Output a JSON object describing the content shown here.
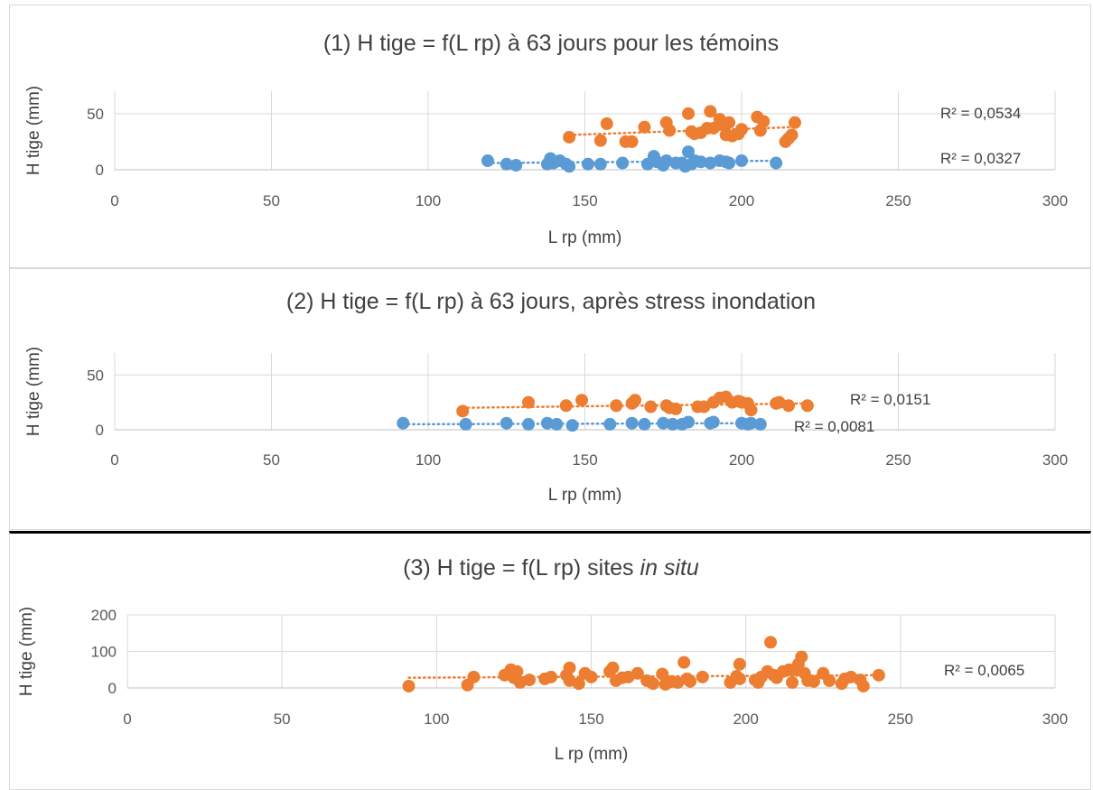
{
  "colors": {
    "blue": "#5b9bd5",
    "orange": "#ed7d31",
    "grid": "#d9d9d9",
    "text": "#404040"
  },
  "chart_data": [
    {
      "type": "scatter",
      "title": "(1) H tige = f(L rp) à 63 jours pour les témoins",
      "xlabel": "L rp (mm)",
      "ylabel": "H tige (mm)",
      "xlim": [
        0,
        300
      ],
      "ylim": [
        0,
        70
      ],
      "xticks": [
        "0",
        "50",
        "100",
        "150",
        "200",
        "250",
        "300"
      ],
      "yticks": [
        "0",
        "50"
      ],
      "grid": true,
      "series": [
        {
          "color": "#5b9bd5",
          "r2": "R² = 0,0327",
          "trend": [
            [
              119,
              6
            ],
            [
              211,
              8
            ]
          ],
          "points": [
            [
              119,
              8
            ],
            [
              125,
              5
            ],
            [
              128,
              4
            ],
            [
              138,
              5
            ],
            [
              139,
              10
            ],
            [
              140,
              6
            ],
            [
              142,
              8
            ],
            [
              144,
              5
            ],
            [
              145,
              3
            ],
            [
              151,
              5
            ],
            [
              155,
              5
            ],
            [
              162,
              6
            ],
            [
              170,
              5
            ],
            [
              172,
              12
            ],
            [
              173,
              7
            ],
            [
              175,
              4
            ],
            [
              176,
              8
            ],
            [
              179,
              6
            ],
            [
              181,
              6
            ],
            [
              182,
              3
            ],
            [
              183,
              16
            ],
            [
              184,
              5
            ],
            [
              185,
              8
            ],
            [
              187,
              7
            ],
            [
              190,
              6
            ],
            [
              193,
              8
            ],
            [
              195,
              7
            ],
            [
              196,
              6
            ],
            [
              200,
              8
            ],
            [
              211,
              6
            ]
          ]
        },
        {
          "color": "#ed7d31",
          "r2": "R² = 0,0534",
          "trend": [
            [
              145,
              31
            ],
            [
              217,
              38
            ]
          ],
          "points": [
            [
              145,
              29
            ],
            [
              155,
              26
            ],
            [
              157,
              41
            ],
            [
              163,
              25
            ],
            [
              165,
              25
            ],
            [
              169,
              38
            ],
            [
              176,
              42
            ],
            [
              177,
              35
            ],
            [
              183,
              50
            ],
            [
              184,
              34
            ],
            [
              185,
              32
            ],
            [
              187,
              33
            ],
            [
              189,
              37
            ],
            [
              190,
              52
            ],
            [
              191,
              37
            ],
            [
              193,
              45
            ],
            [
              194,
              40
            ],
            [
              195,
              31
            ],
            [
              196,
              42
            ],
            [
              197,
              30
            ],
            [
              199,
              32
            ],
            [
              200,
              36
            ],
            [
              205,
              47
            ],
            [
              206,
              35
            ],
            [
              207,
              43
            ],
            [
              214,
              25
            ],
            [
              215,
              28
            ],
            [
              216,
              31
            ],
            [
              217,
              42
            ]
          ]
        }
      ]
    },
    {
      "type": "scatter",
      "title": "(2) H tige = f(L rp) à 63 jours, après stress inondation",
      "xlabel": "L rp (mm)",
      "ylabel": "H tige (mm)",
      "xlim": [
        0,
        300
      ],
      "ylim": [
        0,
        70
      ],
      "xticks": [
        "0",
        "50",
        "100",
        "150",
        "200",
        "250",
        "300"
      ],
      "yticks": [
        "0",
        "50"
      ],
      "grid": true,
      "series": [
        {
          "color": "#5b9bd5",
          "r2": "R² = 0,0081",
          "trend": [
            [
              92,
              5
            ],
            [
              206,
              6
            ]
          ],
          "points": [
            [
              92,
              6
            ],
            [
              112,
              5
            ],
            [
              125,
              6
            ],
            [
              132,
              5
            ],
            [
              138,
              6
            ],
            [
              141,
              5
            ],
            [
              146,
              4
            ],
            [
              158,
              5
            ],
            [
              165,
              6
            ],
            [
              169,
              5
            ],
            [
              175,
              6
            ],
            [
              178,
              5
            ],
            [
              181,
              5
            ],
            [
              183,
              7
            ],
            [
              190,
              6
            ],
            [
              191,
              7
            ],
            [
              200,
              6
            ],
            [
              202,
              5
            ],
            [
              203,
              6
            ],
            [
              206,
              5
            ]
          ]
        },
        {
          "color": "#ed7d31",
          "r2": "R² = 0,0151",
          "trend": [
            [
              111,
              20
            ],
            [
              221,
              24
            ]
          ],
          "points": [
            [
              111,
              17
            ],
            [
              132,
              25
            ],
            [
              144,
              22
            ],
            [
              149,
              27
            ],
            [
              160,
              22
            ],
            [
              165,
              24
            ],
            [
              166,
              27
            ],
            [
              171,
              21
            ],
            [
              176,
              22
            ],
            [
              177,
              20
            ],
            [
              179,
              19
            ],
            [
              186,
              21
            ],
            [
              188,
              21
            ],
            [
              191,
              25
            ],
            [
              193,
              29
            ],
            [
              195,
              30
            ],
            [
              197,
              25
            ],
            [
              199,
              26
            ],
            [
              200,
              25
            ],
            [
              202,
              24
            ],
            [
              203,
              18
            ],
            [
              211,
              24
            ],
            [
              212,
              25
            ],
            [
              215,
              22
            ],
            [
              221,
              22
            ]
          ]
        }
      ]
    },
    {
      "type": "scatter",
      "title": "(3) H tige = f(L rp) sites",
      "title_italic": "in situ",
      "xlabel": "L rp (mm)",
      "ylabel": "H tige (mm)",
      "xlim": [
        0,
        300
      ],
      "ylim": [
        0,
        200
      ],
      "xticks": [
        "0",
        "50",
        "100",
        "150",
        "200",
        "250",
        "300"
      ],
      "yticks": [
        "0",
        "100",
        "200"
      ],
      "grid": true,
      "series": [
        {
          "color": "#ed7d31",
          "r2": "R² = 0,0065",
          "trend": [
            [
              91,
              28
            ],
            [
              243,
              35
            ]
          ],
          "points": [
            [
              91,
              5
            ],
            [
              110,
              8
            ],
            [
              112,
              30
            ],
            [
              122,
              35
            ],
            [
              124,
              50
            ],
            [
              125,
              28
            ],
            [
              126,
              45
            ],
            [
              127,
              15
            ],
            [
              130,
              22
            ],
            [
              135,
              25
            ],
            [
              137,
              30
            ],
            [
              142,
              35
            ],
            [
              143,
              55
            ],
            [
              143,
              20
            ],
            [
              146,
              12
            ],
            [
              148,
              40
            ],
            [
              150,
              30
            ],
            [
              156,
              45
            ],
            [
              157,
              55
            ],
            [
              158,
              20
            ],
            [
              160,
              28
            ],
            [
              162,
              30
            ],
            [
              165,
              40
            ],
            [
              168,
              20
            ],
            [
              170,
              12
            ],
            [
              173,
              38
            ],
            [
              174,
              10
            ],
            [
              176,
              18
            ],
            [
              178,
              15
            ],
            [
              180,
              70
            ],
            [
              181,
              25
            ],
            [
              182,
              18
            ],
            [
              186,
              30
            ],
            [
              195,
              15
            ],
            [
              197,
              32
            ],
            [
              198,
              65
            ],
            [
              198,
              25
            ],
            [
              203,
              22
            ],
            [
              204,
              15
            ],
            [
              205,
              30
            ],
            [
              207,
              45
            ],
            [
              208,
              125
            ],
            [
              209,
              35
            ],
            [
              210,
              28
            ],
            [
              212,
              45
            ],
            [
              214,
              50
            ],
            [
              215,
              15
            ],
            [
              216,
              50
            ],
            [
              217,
              65
            ],
            [
              218,
              85
            ],
            [
              219,
              40
            ],
            [
              220,
              20
            ],
            [
              222,
              18
            ],
            [
              225,
              40
            ],
            [
              227,
              20
            ],
            [
              231,
              12
            ],
            [
              232,
              25
            ],
            [
              234,
              30
            ],
            [
              237,
              22
            ],
            [
              238,
              5
            ],
            [
              243,
              35
            ]
          ]
        }
      ]
    }
  ]
}
